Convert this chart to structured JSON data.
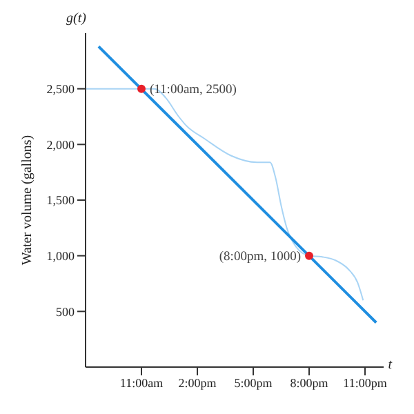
{
  "chart_data": {
    "type": "line",
    "xlabel": "t",
    "ylabel": "Water volume (gallons)",
    "xlim": [
      8,
      24
    ],
    "ylim": [
      0,
      3000
    ],
    "xticks": [
      {
        "value": 11,
        "label": "11:00am"
      },
      {
        "value": 14,
        "label": "2:00pm"
      },
      {
        "value": 17,
        "label": "5:00pm"
      },
      {
        "value": 20,
        "label": "8:00pm"
      },
      {
        "value": 23,
        "label": "11:00pm"
      }
    ],
    "yticks": [
      500,
      {
        "value": 1000,
        "label": "1,000"
      },
      {
        "value": 1500,
        "label": "1,500"
      },
      {
        "value": 2000,
        "label": "2,000"
      },
      {
        "value": 2500,
        "label": "2,500"
      }
    ],
    "grid": false,
    "legend": false,
    "series": [
      {
        "color": "#a8d4f5",
        "x": [
          8,
          11,
          11.7,
          12.3,
          13.0,
          13.4,
          14.4,
          15.8,
          17.2,
          17.9,
          18.2,
          18.5,
          18.8,
          19.3,
          20,
          20.7,
          21.4,
          22.1,
          22.6,
          22.9
        ],
        "values": [
          2500,
          2500,
          2500,
          2420,
          2250,
          2170,
          2050,
          1900,
          1840,
          1840,
          1700,
          1450,
          1250,
          1080,
          1000,
          990,
          960,
          880,
          760,
          600
        ]
      },
      {
        "color": "#1f8ee0",
        "x": [
          8.7,
          23.6
        ],
        "values": [
          2880,
          400
        ]
      },
      {
        "type": "scatter",
        "color": "#e8202a",
        "x": [
          11,
          20
        ],
        "values": [
          2500,
          1000
        ]
      }
    ],
    "annotations": [
      "g(t)",
      {
        "text": "(11:00am, 2500)",
        "x": 11,
        "y": 2500
      },
      {
        "text": "(8:00pm, 1000)",
        "x": 20,
        "y": 1000
      }
    ]
  }
}
